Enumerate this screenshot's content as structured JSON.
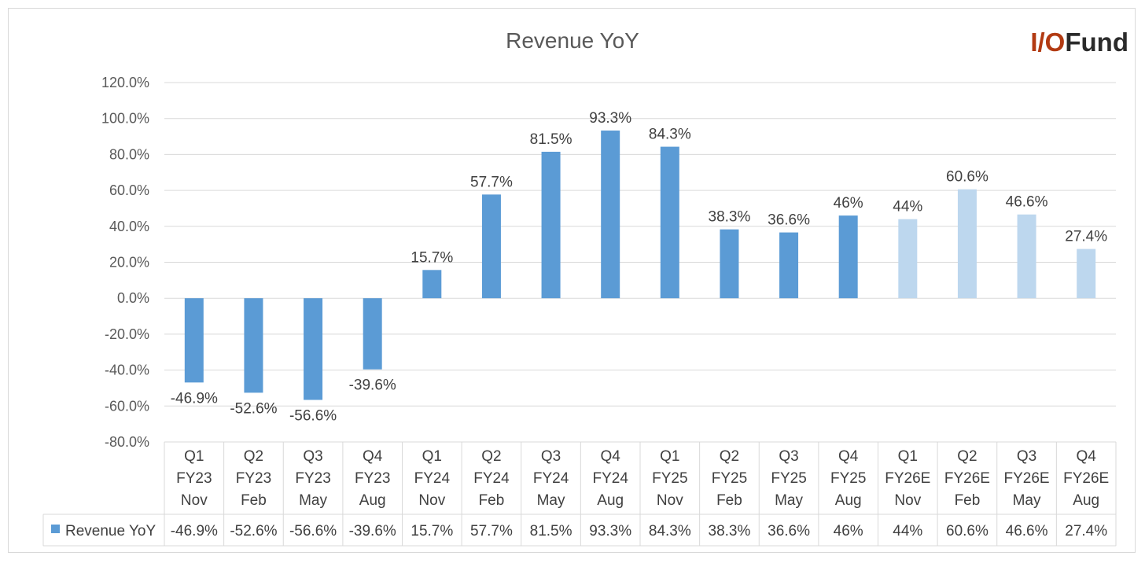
{
  "logo": {
    "part1": "I/O",
    "part2": "Fund"
  },
  "chart_data": {
    "type": "bar",
    "title": "Revenue YoY",
    "categories": [
      [
        "Q1",
        "FY23",
        "Nov"
      ],
      [
        "Q2",
        "FY23",
        "Feb"
      ],
      [
        "Q3",
        "FY23",
        "May"
      ],
      [
        "Q4",
        "FY23",
        "Aug"
      ],
      [
        "Q1",
        "FY24",
        "Nov"
      ],
      [
        "Q2",
        "FY24",
        "Feb"
      ],
      [
        "Q3",
        "FY24",
        "May"
      ],
      [
        "Q4",
        "FY24",
        "Aug"
      ],
      [
        "Q1",
        "FY25",
        "Nov"
      ],
      [
        "Q2",
        "FY25",
        "Feb"
      ],
      [
        "Q3",
        "FY25",
        "May"
      ],
      [
        "Q4",
        "FY25",
        "Aug"
      ],
      [
        "Q1",
        "FY26E",
        "Nov"
      ],
      [
        "Q2",
        "FY26E",
        "Feb"
      ],
      [
        "Q3",
        "FY26E",
        "May"
      ],
      [
        "Q4",
        "FY26E",
        "Aug"
      ]
    ],
    "series": [
      {
        "name": "Revenue YoY",
        "values": [
          -46.9,
          -52.6,
          -56.6,
          -39.6,
          15.7,
          57.7,
          81.5,
          93.3,
          84.3,
          38.3,
          36.6,
          46,
          44,
          60.6,
          46.6,
          27.4
        ],
        "labels": [
          "-46.9%",
          "-52.6%",
          "-56.6%",
          "-39.6%",
          "15.7%",
          "57.7%",
          "81.5%",
          "93.3%",
          "84.3%",
          "38.3%",
          "36.6%",
          "46%",
          "44%",
          "60.6%",
          "46.6%",
          "27.4%"
        ],
        "estimated": [
          false,
          false,
          false,
          false,
          false,
          false,
          false,
          false,
          false,
          false,
          false,
          false,
          true,
          true,
          true,
          true
        ]
      }
    ],
    "yticks": [
      "120.0%",
      "100.0%",
      "80.0%",
      "60.0%",
      "40.0%",
      "20.0%",
      "0.0%",
      "-20.0%",
      "-40.0%",
      "-60.0%",
      "-80.0%"
    ],
    "ylim": [
      -80,
      120
    ],
    "ystep": 20,
    "colors": {
      "actual": "#5b9bd5",
      "estimate": "#bdd7ee",
      "grid": "#d9d9d9",
      "axis_text": "#595959"
    },
    "legend": "data table below axis"
  }
}
